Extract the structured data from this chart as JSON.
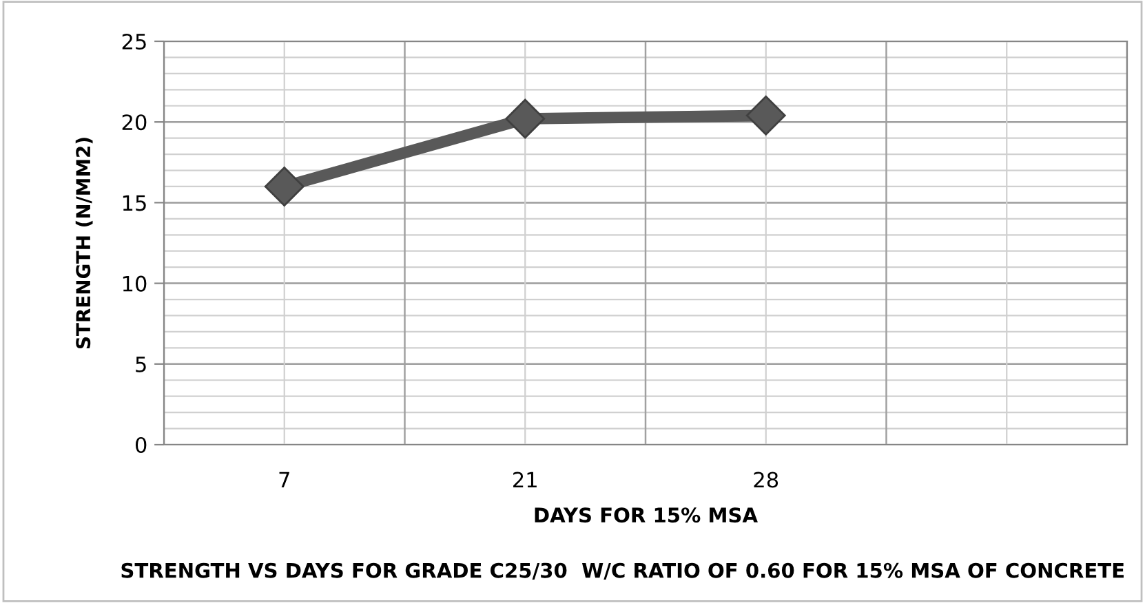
{
  "chart_data": {
    "type": "line",
    "xlabel": "DAYS FOR 15% MSA",
    "ylabel": "STRENGTH (N/MM2)",
    "annotations": [
      "STRENGTH VS DAYS FOR GRADE C25/30  W/C RATIO OF 0.60 FOR 15% MSA OF CONCRETE"
    ],
    "categories": [
      "7",
      "21",
      "28",
      null
    ],
    "series": [
      {
        "color": "#595959",
        "values": [
          16.0,
          20.2,
          20.4,
          null
        ]
      }
    ],
    "ylim": [
      0,
      25
    ],
    "yticks": [
      0,
      5,
      10,
      15,
      20,
      25
    ],
    "grid": true,
    "legend": false,
    "marker": "diamond",
    "line_style": "solid"
  }
}
